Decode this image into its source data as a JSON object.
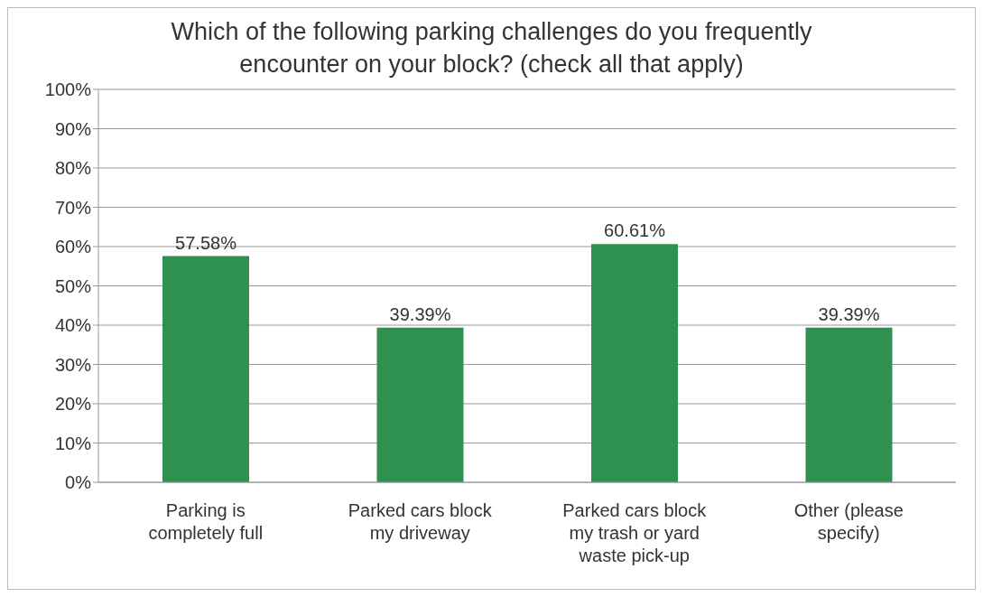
{
  "chart_data": {
    "type": "bar",
    "title": "Which of the following parking challenges do you frequently encounter on your block? (check all that apply)",
    "categories": [
      "Parking is completely full",
      "Parked cars block my driveway",
      "Parked cars block my trash or yard waste pick-up",
      "Other (please specify)"
    ],
    "values": [
      57.58,
      39.39,
      60.61,
      39.39
    ],
    "value_labels": [
      "57.58%",
      "39.39%",
      "60.61%",
      "39.39%"
    ],
    "color": "#2e9150",
    "ylim": [
      0,
      100
    ],
    "yticks": [
      {
        "value": 0,
        "label": "0%"
      },
      {
        "value": 10,
        "label": "10%"
      },
      {
        "value": 20,
        "label": "20%"
      },
      {
        "value": 30,
        "label": "30%"
      },
      {
        "value": 40,
        "label": "40%"
      },
      {
        "value": 50,
        "label": "50%"
      },
      {
        "value": 60,
        "label": "60%"
      },
      {
        "value": 70,
        "label": "70%"
      },
      {
        "value": 80,
        "label": "80%"
      },
      {
        "value": 90,
        "label": "90%"
      },
      {
        "value": 100,
        "label": "100%"
      }
    ],
    "grid": "y",
    "legend": false
  }
}
